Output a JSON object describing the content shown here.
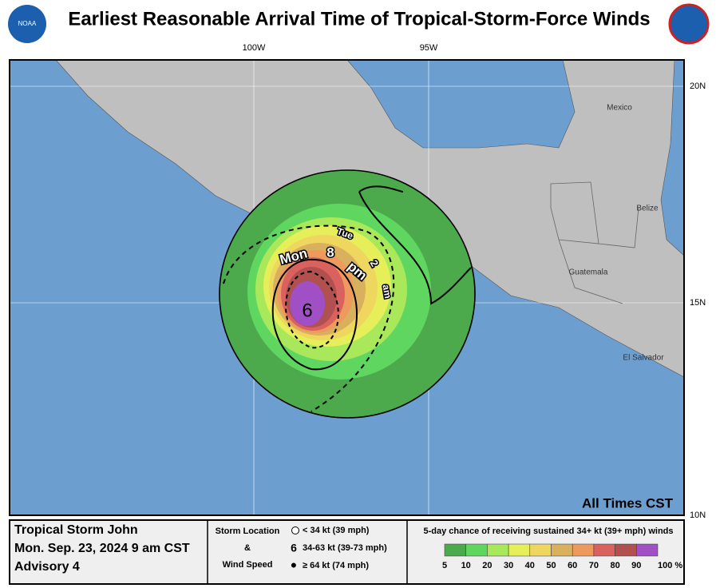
{
  "header": {
    "title": "Earliest Reasonable Arrival Time of Tropical-Storm-Force Winds"
  },
  "map": {
    "lon_labels": [
      "100W",
      "95W"
    ],
    "lat_labels": [
      "20N",
      "15N",
      "10N"
    ],
    "places": [
      "Mexico",
      "Belize",
      "Guatemala",
      "El Salvador"
    ],
    "contour_labels": [
      "Mon",
      "8",
      "pm",
      "Tue",
      "2",
      "am"
    ],
    "time_zone": "All Times CST"
  },
  "footer": {
    "storm": "Tropical Storm John",
    "date": "Mon. Sep. 23, 2024  9 am CST",
    "advisory": "Advisory 4",
    "location_title": [
      "Storm Location",
      "&",
      "Wind Speed"
    ],
    "location_items": [
      "< 34 kt (39 mph)",
      "34-63 kt (39-73 mph)",
      "≥ 64 kt (74 mph)"
    ],
    "chance_title": "5-day chance of receiving sustained 34+ kt (39+ mph) winds",
    "scale_labels": [
      "5",
      "10",
      "20",
      "30",
      "40",
      "50",
      "60",
      "70",
      "80",
      "90",
      "100 %"
    ],
    "scale_colors": [
      "#4caa4c",
      "#5fd65f",
      "#a8e85a",
      "#e6ef5a",
      "#efd65e",
      "#d8b05e",
      "#ee9a5e",
      "#d9625e",
      "#b0504f",
      "#a04fc4"
    ]
  }
}
